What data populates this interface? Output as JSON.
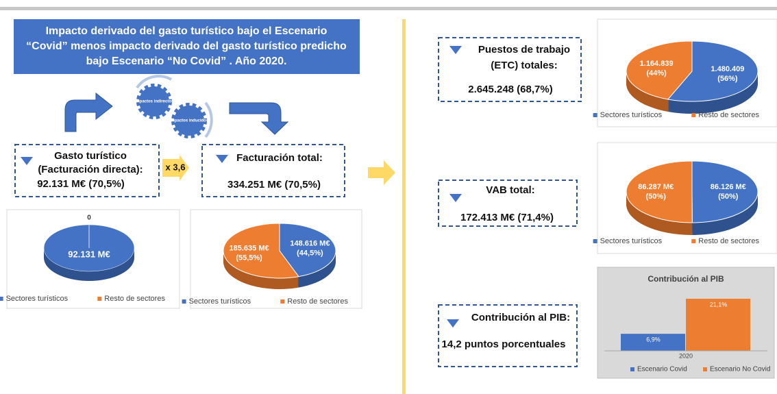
{
  "intro": {
    "lines": [
      "Impacto derivado del gasto turístico bajo el Escenario",
      "“Covid” menos impacto derivado del gasto turístico predicho",
      "bajo Escenario “No Covid” . Año 2020."
    ]
  },
  "gears": [
    "Impactos indirectos",
    "Impactos inducidos"
  ],
  "multiplier": "x 3,6",
  "boxes": [
    {
      "lines": [
        "Gasto turístico",
        "(Facturación directa):"
      ],
      "value": "92.131 M€ (70,5%)"
    },
    {
      "lines": [
        "Facturación total:"
      ],
      "value": "334.251 M€ (70,5%)"
    },
    {
      "lines": [
        "Puestos de trabajo",
        "(ETC) totales:"
      ],
      "value": "2.645.248 (68,7%)"
    },
    {
      "lines": [
        "VAB total:"
      ],
      "value": "172.413 M€ (71,4%)"
    },
    {
      "lines": [
        "Contribución al PIB:"
      ],
      "value": "14,2 puntos porcentuales"
    }
  ],
  "chart_data": [
    {
      "type": "pie",
      "categories": [
        "Sectores turísticos",
        "Resto de sectores"
      ],
      "colors": [
        "#4472c4",
        "#ed7d31"
      ],
      "values": [
        92131,
        0
      ],
      "value_labels": [
        [
          "92.131 M€"
        ],
        [
          "0"
        ]
      ]
    },
    {
      "type": "pie",
      "categories": [
        "Sectores turísticos",
        "Resto de sectores"
      ],
      "colors": [
        "#4472c4",
        "#ed7d31"
      ],
      "values": [
        148616,
        185635
      ],
      "value_labels": [
        [
          "148.616 M€",
          "(44,5%)"
        ],
        [
          "185.635 M€",
          "(55,5%)"
        ]
      ]
    },
    {
      "type": "pie",
      "categories": [
        "Sectores turísticos",
        "Resto de sectores"
      ],
      "colors": [
        "#4472c4",
        "#ed7d31"
      ],
      "values": [
        1480409,
        1164839
      ],
      "value_labels": [
        [
          "1.480.409",
          "(56%)"
        ],
        [
          "1.164.839",
          "(44%)"
        ]
      ]
    },
    {
      "type": "pie",
      "categories": [
        "Sectores turísticos",
        "Resto de sectores"
      ],
      "colors": [
        "#4472c4",
        "#ed7d31"
      ],
      "values": [
        86126,
        86287
      ],
      "value_labels": [
        [
          "86.126 M€",
          "(50%)"
        ],
        [
          "86.287 M€",
          "(50%)"
        ]
      ]
    },
    {
      "type": "bar",
      "title": "Contribución al PIB",
      "categories": [
        "2020"
      ],
      "series": [
        {
          "name": "Escenario Covid",
          "color": "#4472c4",
          "values": [
            6.9
          ],
          "value_labels": [
            "6,9%"
          ]
        },
        {
          "name": "Escenario No Covid",
          "color": "#ed7d31",
          "values": [
            21.1
          ],
          "value_labels": [
            "21,1%"
          ]
        }
      ]
    }
  ]
}
